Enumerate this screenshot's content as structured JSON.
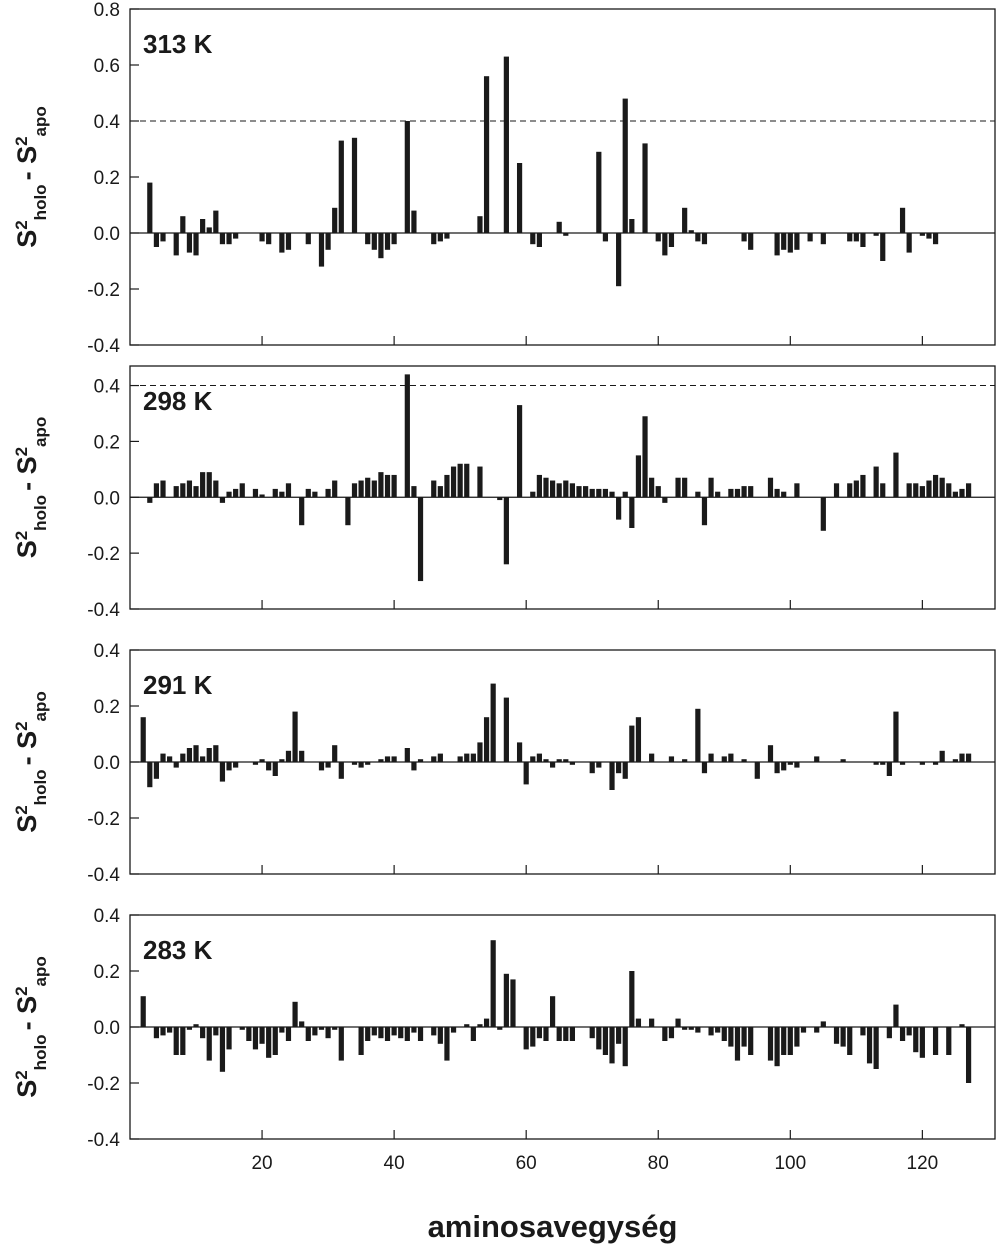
{
  "chart_data": [
    {
      "type": "bar",
      "label": "313 K",
      "ylabel": [
        "S",
        "2",
        "holo",
        "- S",
        "2",
        "apo"
      ],
      "color": "#1a1a1a",
      "xlim": [
        0,
        131
      ],
      "xticks": [
        20,
        40,
        60,
        80,
        100,
        120
      ],
      "show_xtick_labels": false,
      "ylim": [
        -0.4,
        0.8
      ],
      "yticks": [
        -0.4,
        -0.2,
        {
          "value": 0,
          "label": "0.0"
        },
        0.2,
        0.4,
        0.6,
        0.8
      ],
      "reference_lines": [
        0.4,
        -0.4
      ],
      "x": [
        3,
        4,
        5,
        7,
        8,
        9,
        10,
        11,
        12,
        13,
        14,
        15,
        16,
        20,
        21,
        23,
        24,
        27,
        29,
        30,
        31,
        32,
        34,
        36,
        37,
        38,
        39,
        40,
        42,
        43,
        46,
        47,
        48,
        53,
        54,
        57,
        59,
        61,
        62,
        65,
        66,
        71,
        72,
        74,
        75,
        76,
        78,
        80,
        81,
        82,
        84,
        85,
        86,
        87,
        93,
        94,
        98,
        99,
        100,
        101,
        103,
        105,
        109,
        110,
        111,
        113,
        114,
        117,
        118,
        120,
        121,
        122
      ],
      "values": [
        0.18,
        -0.05,
        -0.03,
        -0.08,
        0.06,
        -0.07,
        -0.08,
        0.05,
        0.02,
        0.08,
        -0.04,
        -0.04,
        -0.02,
        -0.03,
        -0.04,
        -0.07,
        -0.06,
        -0.04,
        -0.12,
        -0.06,
        0.09,
        0.33,
        0.34,
        -0.04,
        -0.06,
        -0.09,
        -0.06,
        -0.04,
        0.4,
        0.08,
        -0.04,
        -0.03,
        -0.02,
        0.06,
        0.56,
        0.63,
        0.25,
        -0.04,
        -0.05,
        0.04,
        -0.01,
        0.29,
        -0.03,
        -0.19,
        0.48,
        0.05,
        0.32,
        -0.03,
        -0.08,
        -0.05,
        0.09,
        0.01,
        -0.03,
        -0.04,
        -0.03,
        -0.06,
        -0.08,
        -0.06,
        -0.07,
        -0.06,
        -0.03,
        -0.04,
        -0.03,
        -0.03,
        -0.05,
        -0.01,
        -0.1,
        0.09,
        -0.07,
        -0.01,
        -0.02,
        -0.04
      ]
    },
    {
      "type": "bar",
      "label": "298 K",
      "ylabel": [
        "S",
        "2",
        "holo",
        "- S",
        "2",
        "apo"
      ],
      "color": "#1a1a1a",
      "xlim": [
        0,
        131
      ],
      "xticks": [
        20,
        40,
        60,
        80,
        100,
        120
      ],
      "show_xtick_labels": false,
      "ylim": [
        -0.4,
        0.47
      ],
      "yticks": [
        -0.4,
        -0.2,
        {
          "value": 0,
          "label": "0.0"
        },
        0.2,
        0.4
      ],
      "reference_lines": [
        0.4,
        -0.4
      ],
      "x": [
        3,
        4,
        5,
        7,
        8,
        9,
        10,
        11,
        12,
        13,
        14,
        15,
        16,
        17,
        19,
        20,
        22,
        23,
        24,
        26,
        27,
        28,
        30,
        31,
        33,
        34,
        35,
        36,
        37,
        38,
        39,
        40,
        42,
        43,
        44,
        46,
        47,
        48,
        49,
        50,
        51,
        53,
        56,
        57,
        59,
        61,
        62,
        63,
        64,
        65,
        66,
        67,
        68,
        69,
        70,
        71,
        72,
        73,
        74,
        75,
        76,
        77,
        78,
        79,
        80,
        81,
        83,
        84,
        86,
        87,
        88,
        89,
        91,
        92,
        93,
        94,
        97,
        98,
        99,
        101,
        105,
        107,
        109,
        110,
        111,
        113,
        114,
        116,
        118,
        119,
        120,
        121,
        122,
        123,
        124,
        125,
        126,
        127
      ],
      "values": [
        -0.02,
        0.05,
        0.06,
        0.04,
        0.05,
        0.06,
        0.04,
        0.09,
        0.09,
        0.06,
        -0.02,
        0.02,
        0.03,
        0.05,
        0.03,
        0.01,
        0.03,
        0.02,
        0.05,
        -0.1,
        0.03,
        0.02,
        0.03,
        0.06,
        -0.1,
        0.05,
        0.06,
        0.07,
        0.06,
        0.09,
        0.08,
        0.08,
        0.44,
        0.04,
        -0.3,
        0.06,
        0.04,
        0.08,
        0.11,
        0.12,
        0.12,
        0.11,
        -0.01,
        -0.24,
        0.33,
        0.02,
        0.08,
        0.07,
        0.06,
        0.05,
        0.06,
        0.05,
        0.04,
        0.04,
        0.03,
        0.03,
        0.03,
        0.02,
        -0.08,
        0.02,
        -0.11,
        0.15,
        0.29,
        0.07,
        0.04,
        -0.02,
        0.07,
        0.07,
        0.02,
        -0.1,
        0.07,
        0.02,
        0.03,
        0.03,
        0.04,
        0.04,
        0.07,
        0.03,
        0.02,
        0.05,
        -0.12,
        0.05,
        0.05,
        0.06,
        0.08,
        0.11,
        0.05,
        0.16,
        0.05,
        0.05,
        0.04,
        0.06,
        0.08,
        0.07,
        0.05,
        0.02,
        0.03,
        0.05
      ]
    },
    {
      "type": "bar",
      "label": "291 K",
      "ylabel": [
        "S",
        "2",
        "holo",
        "- S",
        "2",
        "apo"
      ],
      "color": "#1a1a1a",
      "xlim": [
        0,
        131
      ],
      "xticks": [
        20,
        40,
        60,
        80,
        100,
        120
      ],
      "show_xtick_labels": false,
      "ylim": [
        -0.4,
        0.4
      ],
      "yticks": [
        -0.4,
        -0.2,
        {
          "value": 0,
          "label": "0.0"
        },
        0.2,
        0.4
      ],
      "reference_lines": [
        0.4,
        -0.4
      ],
      "x": [
        2,
        3,
        4,
        5,
        6,
        7,
        8,
        9,
        10,
        11,
        12,
        13,
        14,
        15,
        16,
        19,
        20,
        21,
        22,
        23,
        24,
        25,
        26,
        29,
        30,
        31,
        32,
        34,
        35,
        36,
        38,
        39,
        40,
        42,
        43,
        44,
        46,
        47,
        50,
        51,
        52,
        53,
        54,
        55,
        57,
        59,
        60,
        61,
        62,
        63,
        64,
        65,
        66,
        67,
        70,
        71,
        73,
        74,
        75,
        76,
        77,
        79,
        82,
        84,
        86,
        87,
        88,
        90,
        91,
        93,
        95,
        97,
        98,
        99,
        100,
        101,
        104,
        108,
        113,
        114,
        115,
        116,
        117,
        120,
        122,
        123,
        125,
        126,
        127
      ],
      "values": [
        0.16,
        -0.09,
        -0.06,
        0.03,
        0.02,
        -0.02,
        0.03,
        0.05,
        0.06,
        0.02,
        0.05,
        0.06,
        -0.07,
        -0.03,
        -0.02,
        -0.01,
        0.01,
        -0.03,
        -0.05,
        0.01,
        0.04,
        0.18,
        0.04,
        -0.03,
        -0.02,
        0.06,
        -0.06,
        -0.01,
        -0.02,
        -0.01,
        0.01,
        0.02,
        0.02,
        0.05,
        -0.03,
        0.01,
        0.02,
        0.03,
        0.02,
        0.03,
        0.03,
        0.07,
        0.16,
        0.28,
        0.23,
        0.07,
        -0.08,
        0.02,
        0.03,
        0.01,
        -0.02,
        0.01,
        0.01,
        -0.01,
        -0.04,
        -0.02,
        -0.1,
        -0.04,
        -0.06,
        0.13,
        0.16,
        0.03,
        0.02,
        0.01,
        0.19,
        -0.04,
        0.03,
        0.02,
        0.03,
        0.01,
        -0.06,
        0.06,
        -0.04,
        -0.03,
        -0.01,
        -0.02,
        0.02,
        0.01,
        -0.01,
        -0.01,
        -0.05,
        0.18,
        -0.01,
        -0.01,
        -0.01,
        0.04,
        0.01,
        0.03,
        0.03
      ]
    },
    {
      "type": "bar",
      "label": "283 K",
      "ylabel": [
        "S",
        "2",
        "holo",
        "- S",
        "2",
        "apo"
      ],
      "color": "#1a1a1a",
      "xlim": [
        0,
        131
      ],
      "xticks": [
        20,
        40,
        60,
        80,
        100,
        120
      ],
      "show_xtick_labels": true,
      "xlabel": "aminosavegység",
      "ylim": [
        -0.4,
        0.4
      ],
      "yticks": [
        -0.4,
        -0.2,
        {
          "value": 0,
          "label": "0.0"
        },
        0.2,
        0.4
      ],
      "reference_lines": [],
      "x": [
        2,
        4,
        5,
        6,
        7,
        8,
        9,
        10,
        11,
        12,
        13,
        14,
        15,
        17,
        18,
        19,
        20,
        21,
        22,
        23,
        24,
        25,
        26,
        27,
        28,
        29,
        30,
        31,
        32,
        35,
        36,
        37,
        38,
        39,
        40,
        41,
        42,
        43,
        44,
        46,
        47,
        48,
        49,
        51,
        52,
        53,
        54,
        55,
        56,
        57,
        58,
        60,
        61,
        62,
        63,
        64,
        65,
        66,
        67,
        70,
        71,
        72,
        73,
        74,
        75,
        76,
        77,
        79,
        81,
        82,
        83,
        84,
        85,
        86,
        88,
        89,
        90,
        91,
        92,
        93,
        94,
        97,
        98,
        99,
        100,
        101,
        102,
        104,
        105,
        107,
        108,
        109,
        111,
        112,
        113,
        115,
        116,
        117,
        118,
        119,
        120,
        122,
        124,
        126,
        127
      ],
      "values": [
        0.11,
        -0.04,
        -0.03,
        -0.02,
        -0.1,
        -0.1,
        -0.01,
        0.01,
        -0.04,
        -0.12,
        -0.03,
        -0.16,
        -0.08,
        -0.01,
        -0.05,
        -0.08,
        -0.06,
        -0.11,
        -0.1,
        -0.02,
        -0.05,
        0.09,
        0.02,
        -0.05,
        -0.03,
        -0.01,
        -0.04,
        -0.01,
        -0.12,
        -0.1,
        -0.05,
        -0.03,
        -0.04,
        -0.05,
        -0.03,
        -0.04,
        -0.05,
        -0.02,
        -0.05,
        -0.03,
        -0.06,
        -0.12,
        -0.02,
        0.01,
        -0.05,
        0.01,
        0.03,
        0.31,
        -0.01,
        0.19,
        0.17,
        -0.08,
        -0.07,
        -0.04,
        -0.05,
        0.11,
        -0.05,
        -0.05,
        -0.05,
        -0.04,
        -0.08,
        -0.1,
        -0.13,
        -0.06,
        -0.14,
        0.2,
        0.03,
        0.03,
        -0.05,
        -0.04,
        0.03,
        -0.01,
        -0.01,
        -0.02,
        -0.03,
        -0.02,
        -0.05,
        -0.07,
        -0.12,
        -0.07,
        -0.1,
        -0.12,
        -0.14,
        -0.1,
        -0.1,
        -0.07,
        -0.02,
        -0.02,
        0.02,
        -0.06,
        -0.07,
        -0.1,
        -0.03,
        -0.13,
        -0.15,
        -0.04,
        0.08,
        -0.05,
        -0.03,
        -0.09,
        -0.11,
        -0.1,
        -0.1,
        0.01,
        -0.2
      ]
    }
  ]
}
